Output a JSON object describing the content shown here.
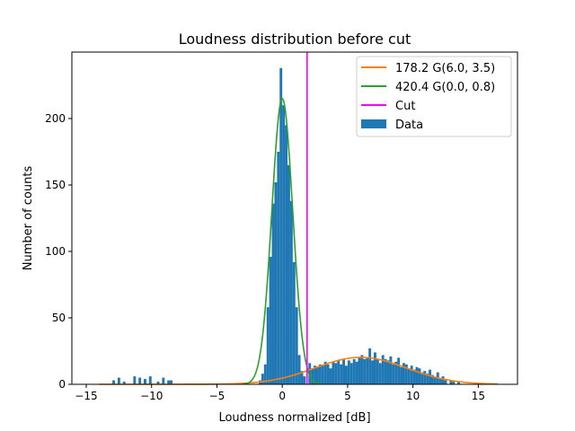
{
  "chart_data": {
    "type": "bar",
    "title": "Loudness distribution before cut",
    "xlabel": "Loudness normalized [dB]",
    "ylabel": "Number of counts",
    "xlim": [
      -16.1,
      18.0
    ],
    "ylim": [
      0,
      250
    ],
    "xticks": [
      -15,
      -10,
      -5,
      0,
      5,
      10,
      15
    ],
    "yticks": [
      0,
      50,
      100,
      150,
      200
    ],
    "grid": false,
    "legend_position": "top-right",
    "colors": {
      "data": "#1f77b4",
      "fit_broad": "#ff7f0e",
      "fit_narrow": "#2ca02c",
      "cut": "#ff00ff"
    },
    "histogram": {
      "name": "Data",
      "bin_width": 0.2,
      "bins": [
        {
          "x": -12.9,
          "y": 3
        },
        {
          "x": -12.5,
          "y": 5
        },
        {
          "x": -12.1,
          "y": 2
        },
        {
          "x": -11.3,
          "y": 6
        },
        {
          "x": -10.9,
          "y": 5
        },
        {
          "x": -10.5,
          "y": 4
        },
        {
          "x": -10.1,
          "y": 6
        },
        {
          "x": -9.5,
          "y": 2
        },
        {
          "x": -9.1,
          "y": 5
        },
        {
          "x": -8.7,
          "y": 3
        },
        {
          "x": -8.5,
          "y": 3
        },
        {
          "x": -1.7,
          "y": 3
        },
        {
          "x": -1.5,
          "y": 8
        },
        {
          "x": -1.3,
          "y": 15
        },
        {
          "x": -1.1,
          "y": 58
        },
        {
          "x": -0.9,
          "y": 96
        },
        {
          "x": -0.7,
          "y": 136
        },
        {
          "x": -0.5,
          "y": 152
        },
        {
          "x": -0.3,
          "y": 175
        },
        {
          "x": -0.1,
          "y": 238
        },
        {
          "x": 0.1,
          "y": 210
        },
        {
          "x": 0.3,
          "y": 195
        },
        {
          "x": 0.5,
          "y": 165
        },
        {
          "x": 0.7,
          "y": 138
        },
        {
          "x": 0.9,
          "y": 92
        },
        {
          "x": 1.1,
          "y": 58
        },
        {
          "x": 1.3,
          "y": 22
        },
        {
          "x": 1.5,
          "y": 10
        },
        {
          "x": 1.7,
          "y": 6
        },
        {
          "x": 2.1,
          "y": 16
        },
        {
          "x": 2.3,
          "y": 12
        },
        {
          "x": 2.5,
          "y": 14
        },
        {
          "x": 2.7,
          "y": 13
        },
        {
          "x": 2.9,
          "y": 15
        },
        {
          "x": 3.1,
          "y": 14
        },
        {
          "x": 3.3,
          "y": 17
        },
        {
          "x": 3.5,
          "y": 15
        },
        {
          "x": 3.7,
          "y": 12
        },
        {
          "x": 3.9,
          "y": 17
        },
        {
          "x": 4.1,
          "y": 16
        },
        {
          "x": 4.3,
          "y": 18
        },
        {
          "x": 4.5,
          "y": 15
        },
        {
          "x": 4.7,
          "y": 19
        },
        {
          "x": 4.9,
          "y": 14
        },
        {
          "x": 5.1,
          "y": 18
        },
        {
          "x": 5.3,
          "y": 16
        },
        {
          "x": 5.5,
          "y": 19
        },
        {
          "x": 5.7,
          "y": 17
        },
        {
          "x": 5.9,
          "y": 20
        },
        {
          "x": 6.1,
          "y": 22
        },
        {
          "x": 6.3,
          "y": 19
        },
        {
          "x": 6.5,
          "y": 20
        },
        {
          "x": 6.7,
          "y": 27
        },
        {
          "x": 6.9,
          "y": 18
        },
        {
          "x": 7.1,
          "y": 24
        },
        {
          "x": 7.3,
          "y": 19
        },
        {
          "x": 7.5,
          "y": 16
        },
        {
          "x": 7.7,
          "y": 22
        },
        {
          "x": 7.9,
          "y": 19
        },
        {
          "x": 8.1,
          "y": 18
        },
        {
          "x": 8.3,
          "y": 21
        },
        {
          "x": 8.5,
          "y": 15
        },
        {
          "x": 8.7,
          "y": 17
        },
        {
          "x": 8.9,
          "y": 20
        },
        {
          "x": 9.1,
          "y": 13
        },
        {
          "x": 9.3,
          "y": 16
        },
        {
          "x": 9.5,
          "y": 15
        },
        {
          "x": 9.7,
          "y": 12
        },
        {
          "x": 9.9,
          "y": 14
        },
        {
          "x": 10.1,
          "y": 11
        },
        {
          "x": 10.3,
          "y": 13
        },
        {
          "x": 10.5,
          "y": 12
        },
        {
          "x": 10.7,
          "y": 9
        },
        {
          "x": 10.9,
          "y": 10
        },
        {
          "x": 11.1,
          "y": 8
        },
        {
          "x": 11.3,
          "y": 11
        },
        {
          "x": 11.5,
          "y": 7
        },
        {
          "x": 11.7,
          "y": 5
        },
        {
          "x": 11.9,
          "y": 9
        },
        {
          "x": 12.1,
          "y": 4
        },
        {
          "x": 12.3,
          "y": 6
        },
        {
          "x": 12.5,
          "y": 3
        },
        {
          "x": 12.9,
          "y": 3
        },
        {
          "x": 13.1,
          "y": 2
        },
        {
          "x": 13.5,
          "y": 2
        }
      ]
    },
    "fits": [
      {
        "name": "178.2  G(6.0, 3.5)",
        "amplitude": 178.2,
        "mean": 6.0,
        "sigma": 3.5,
        "peak": 20.3,
        "x_range": [
          -14.0,
          16.5
        ],
        "color": "#ff7f0e"
      },
      {
        "name": "420.4  G(0.0, 0.8)",
        "amplitude": 420.4,
        "mean": 0.0,
        "sigma": 0.8,
        "peak": 215,
        "x_range": [
          -3.0,
          3.0
        ],
        "color": "#2ca02c"
      }
    ],
    "cut": {
      "name": "Cut",
      "x": 1.9,
      "color": "#ff00ff"
    },
    "legend": [
      {
        "label": "178.2  G(6.0, 3.5)",
        "kind": "line",
        "color": "#ff7f0e"
      },
      {
        "label": "420.4  G(0.0, 0.8)",
        "kind": "line",
        "color": "#2ca02c"
      },
      {
        "label": "Cut",
        "kind": "line",
        "color": "#ff00ff"
      },
      {
        "label": "Data",
        "kind": "patch",
        "color": "#1f77b4"
      }
    ]
  }
}
